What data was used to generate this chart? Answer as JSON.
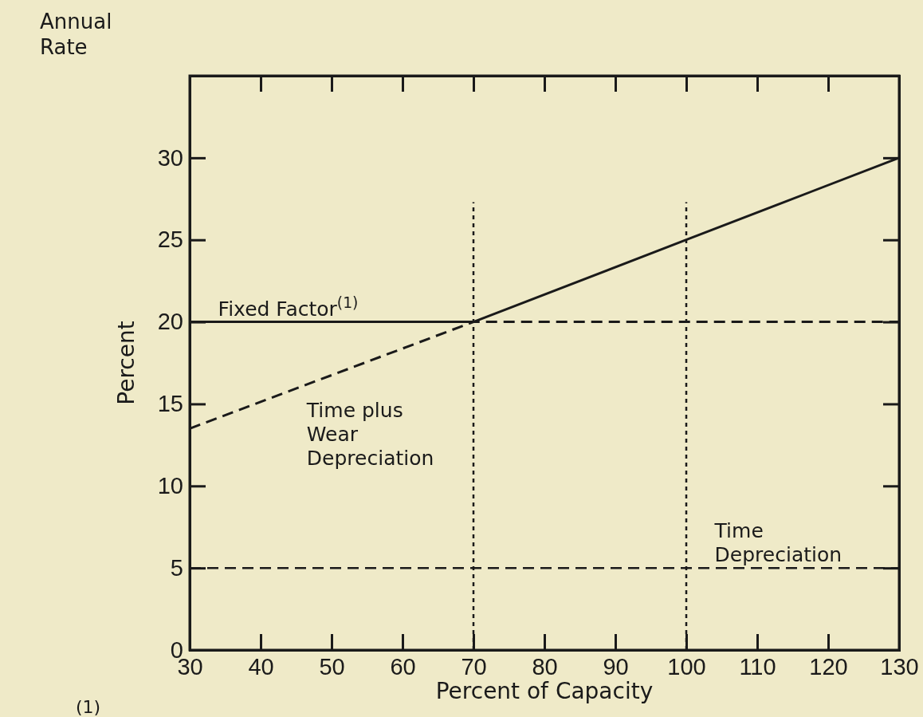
{
  "chart_data": {
    "type": "line",
    "title": "Annual Rate",
    "xlabel": "Percent of Capacity",
    "ylabel": "Percent",
    "xlim": [
      30,
      130
    ],
    "xticks": [
      30,
      40,
      50,
      60,
      70,
      80,
      90,
      100,
      110,
      120,
      130
    ],
    "ylim": [
      0,
      35
    ],
    "yticks": [
      0,
      5,
      10,
      15,
      20,
      25,
      30
    ],
    "grid": false,
    "marker": "none",
    "series": [
      {
        "color": "#1a1a1a",
        "line_style": "solid",
        "x": [
          30,
          70,
          100,
          130
        ],
        "values": [
          20,
          20,
          25,
          30
        ]
      },
      {
        "color": "#1a1a1a",
        "line_style": "dashed",
        "x": [
          30,
          70,
          130
        ],
        "values": [
          13.5,
          20,
          20
        ]
      }
    ],
    "ref_lines": [
      {
        "axis": "y",
        "value": 5,
        "line_style": "dashed",
        "color": "#1a1a1a"
      },
      {
        "axis": "x",
        "value": 70,
        "line_style": "dotted",
        "color": "#1a1a1a"
      },
      {
        "axis": "x",
        "value": 100,
        "line_style": "dotted",
        "color": "#1a1a1a"
      }
    ],
    "annotations": [
      {
        "text": "Fixed Factor$^{(1)}$",
        "x": 34,
        "y": 20
      },
      "Time plus\nWear\nDepreciation",
      {
        "text": "Time\nDepreciation",
        "x": 104,
        "y": 5
      },
      "(1)"
    ]
  }
}
